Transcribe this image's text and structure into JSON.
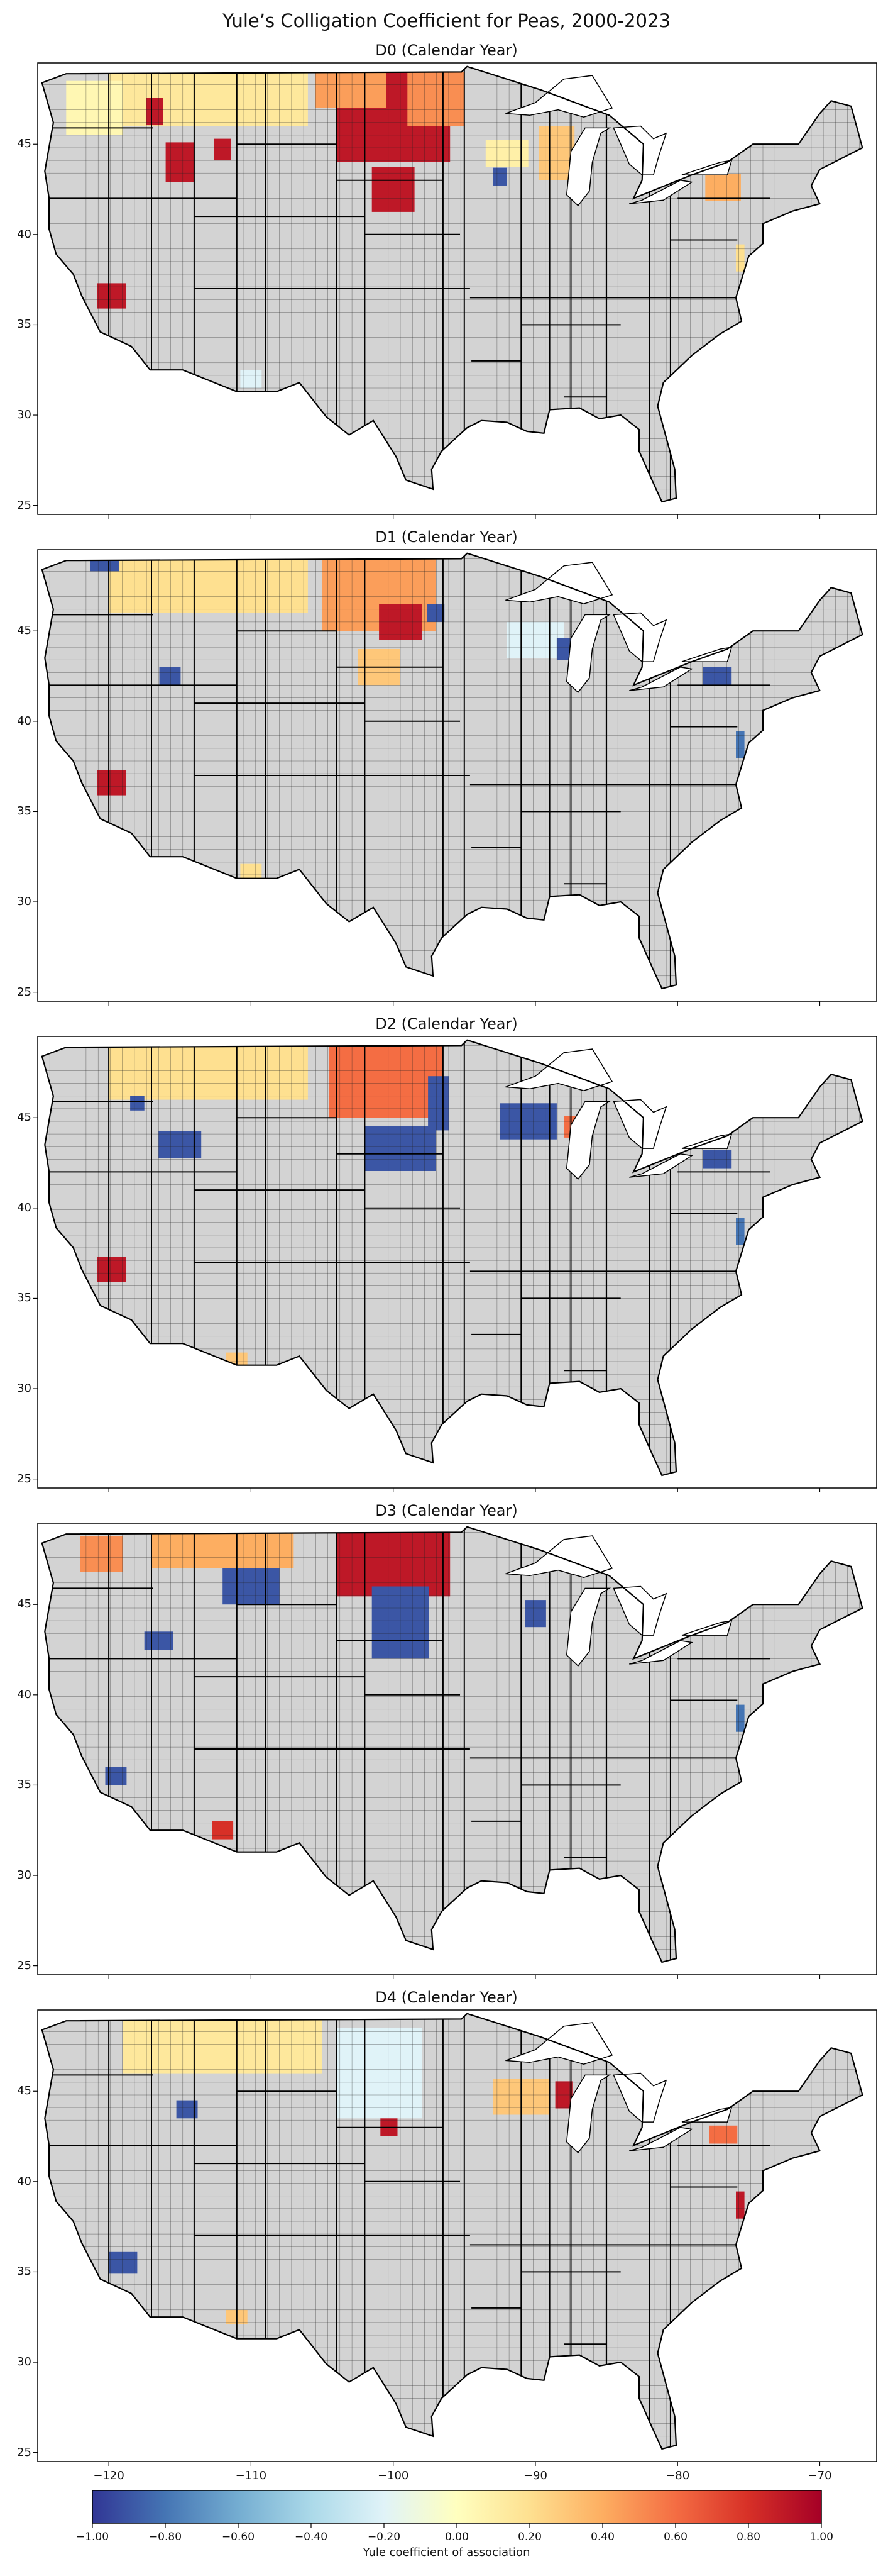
{
  "figure": {
    "title": "Yule’s Colligation Coefficient for Peas, 2000-2023"
  },
  "map_data": {
    "type": "choropleth",
    "region": "Contiguous United States (county level)",
    "lon_range": [
      -125,
      -66
    ],
    "lat_range": [
      24.5,
      49.5
    ],
    "x_ticks": [
      "−120",
      "−110",
      "−100",
      "−90",
      "−80",
      "−70"
    ],
    "y_ticks": [
      "25",
      "30",
      "35",
      "40",
      "45"
    ],
    "no_data_color": "#d3d3d3",
    "colormap": "RdYlBu_r",
    "panels": [
      {
        "title": "D0 (Calendar Year)",
        "highlights": [
          {
            "lon": -100,
            "lat": 46.5,
            "v": 0.9,
            "w": 8,
            "h": 5
          },
          {
            "lon": -97,
            "lat": 47.5,
            "v": 0.5,
            "w": 4,
            "h": 3
          },
          {
            "lon": -103,
            "lat": 48,
            "v": 0.45,
            "w": 5,
            "h": 2
          },
          {
            "lon": -113,
            "lat": 47.5,
            "v": 0.15,
            "w": 14,
            "h": 3
          },
          {
            "lon": -121,
            "lat": 47,
            "v": 0.05,
            "w": 4,
            "h": 3
          },
          {
            "lon": -116.8,
            "lat": 46.8,
            "v": 0.9,
            "w": 1.2,
            "h": 1.5
          },
          {
            "lon": -115,
            "lat": 44,
            "v": 0.9,
            "w": 2,
            "h": 2.2
          },
          {
            "lon": -112,
            "lat": 44.7,
            "v": 0.9,
            "w": 1.2,
            "h": 1.2
          },
          {
            "lon": -119.8,
            "lat": 36.6,
            "v": 0.9,
            "w": 2,
            "h": 1.4
          },
          {
            "lon": -100,
            "lat": 42.5,
            "v": 0.9,
            "w": 3,
            "h": 2.5
          },
          {
            "lon": -92,
            "lat": 44.5,
            "v": 0.1,
            "w": 3,
            "h": 1.5
          },
          {
            "lon": -88.5,
            "lat": 44.5,
            "v": 0.3,
            "w": 2.5,
            "h": 3
          },
          {
            "lon": -92.5,
            "lat": 43.2,
            "v": -0.9,
            "w": 1,
            "h": 1
          },
          {
            "lon": -76.8,
            "lat": 42.6,
            "v": 0.4,
            "w": 2.5,
            "h": 1.5
          },
          {
            "lon": -75.6,
            "lat": 38.7,
            "v": 0.2,
            "w": 0.6,
            "h": 1.5
          },
          {
            "lon": -110,
            "lat": 32,
            "v": -0.2,
            "w": 1.5,
            "h": 1
          }
        ]
      },
      {
        "title": "D1 (Calendar Year)",
        "highlights": [
          {
            "lon": -101,
            "lat": 47,
            "v": 0.45,
            "w": 8,
            "h": 4
          },
          {
            "lon": -99.5,
            "lat": 45.5,
            "v": 0.9,
            "w": 3,
            "h": 2
          },
          {
            "lon": -113,
            "lat": 47.5,
            "v": 0.2,
            "w": 14,
            "h": 3
          },
          {
            "lon": -97,
            "lat": 46,
            "v": -0.9,
            "w": 1.2,
            "h": 1
          },
          {
            "lon": -120.3,
            "lat": 48.6,
            "v": -0.9,
            "w": 2,
            "h": 0.6
          },
          {
            "lon": -115.7,
            "lat": 42.5,
            "v": -0.9,
            "w": 1.5,
            "h": 1
          },
          {
            "lon": -119.8,
            "lat": 36.6,
            "v": 0.9,
            "w": 2,
            "h": 1.4
          },
          {
            "lon": -101,
            "lat": 43,
            "v": 0.3,
            "w": 3,
            "h": 2
          },
          {
            "lon": -90,
            "lat": 44.5,
            "v": -0.2,
            "w": 4,
            "h": 2
          },
          {
            "lon": -88,
            "lat": 44,
            "v": -0.9,
            "w": 1,
            "h": 1.2
          },
          {
            "lon": -77.2,
            "lat": 42.5,
            "v": -0.9,
            "w": 2,
            "h": 1
          },
          {
            "lon": -75.6,
            "lat": 38.7,
            "v": -0.8,
            "w": 0.6,
            "h": 1.5
          },
          {
            "lon": -110,
            "lat": 31.7,
            "v": 0.2,
            "w": 1.5,
            "h": 0.8
          }
        ]
      },
      {
        "title": "D2 (Calendar Year)",
        "highlights": [
          {
            "lon": -100.5,
            "lat": 47,
            "v": 0.6,
            "w": 8,
            "h": 4
          },
          {
            "lon": -113,
            "lat": 47.5,
            "v": 0.2,
            "w": 14,
            "h": 3
          },
          {
            "lon": -96.8,
            "lat": 45.8,
            "v": -0.9,
            "w": 1.5,
            "h": 3
          },
          {
            "lon": -99.5,
            "lat": 43.3,
            "v": -0.9,
            "w": 5,
            "h": 2.5
          },
          {
            "lon": -115,
            "lat": 43.5,
            "v": -0.9,
            "w": 3,
            "h": 1.5
          },
          {
            "lon": -118,
            "lat": 45.8,
            "v": -0.9,
            "w": 1,
            "h": 0.8
          },
          {
            "lon": -119.8,
            "lat": 36.6,
            "v": 0.9,
            "w": 2,
            "h": 1.4
          },
          {
            "lon": -90.5,
            "lat": 44.8,
            "v": -0.9,
            "w": 4,
            "h": 2
          },
          {
            "lon": -87.5,
            "lat": 44.5,
            "v": 0.6,
            "w": 1,
            "h": 1.2
          },
          {
            "lon": -77.2,
            "lat": 42.7,
            "v": -0.9,
            "w": 2,
            "h": 1
          },
          {
            "lon": -75.6,
            "lat": 38.7,
            "v": -0.8,
            "w": 0.6,
            "h": 1.5
          },
          {
            "lon": -111,
            "lat": 31.5,
            "v": 0.3,
            "w": 1.5,
            "h": 1
          }
        ]
      },
      {
        "title": "D3 (Calendar Year)",
        "highlights": [
          {
            "lon": -100,
            "lat": 47.2,
            "v": 0.9,
            "w": 8,
            "h": 3.5
          },
          {
            "lon": -99.5,
            "lat": 44,
            "v": -0.9,
            "w": 4,
            "h": 4
          },
          {
            "lon": -110,
            "lat": 46,
            "v": -0.9,
            "w": 4,
            "h": 2
          },
          {
            "lon": -112,
            "lat": 48,
            "v": 0.4,
            "w": 10,
            "h": 2
          },
          {
            "lon": -120.5,
            "lat": 47.8,
            "v": 0.5,
            "w": 3,
            "h": 2
          },
          {
            "lon": -116.5,
            "lat": 43,
            "v": -0.9,
            "w": 2,
            "h": 1
          },
          {
            "lon": -119.5,
            "lat": 35.5,
            "v": -0.9,
            "w": 1.5,
            "h": 1
          },
          {
            "lon": -90,
            "lat": 44.5,
            "v": -0.9,
            "w": 1.5,
            "h": 1.5
          },
          {
            "lon": -75.6,
            "lat": 38.7,
            "v": -0.8,
            "w": 0.6,
            "h": 1.5
          },
          {
            "lon": -112,
            "lat": 32.5,
            "v": 0.8,
            "w": 1.5,
            "h": 1
          }
        ]
      },
      {
        "title": "D4 (Calendar Year)",
        "highlights": [
          {
            "lon": -101,
            "lat": 46,
            "v": -0.2,
            "w": 6,
            "h": 5
          },
          {
            "lon": -112,
            "lat": 47.5,
            "v": 0.15,
            "w": 14,
            "h": 3
          },
          {
            "lon": -91,
            "lat": 44.7,
            "v": 0.3,
            "w": 4,
            "h": 2
          },
          {
            "lon": -88,
            "lat": 44.8,
            "v": 0.9,
            "w": 1.2,
            "h": 1.5
          },
          {
            "lon": -100.3,
            "lat": 43,
            "v": 0.9,
            "w": 1.2,
            "h": 1
          },
          {
            "lon": -114.5,
            "lat": 44,
            "v": -0.9,
            "w": 1.5,
            "h": 1
          },
          {
            "lon": -119,
            "lat": 35.5,
            "v": -0.9,
            "w": 2,
            "h": 1.2
          },
          {
            "lon": -76.8,
            "lat": 42.6,
            "v": 0.6,
            "w": 2,
            "h": 1
          },
          {
            "lon": -75.6,
            "lat": 38.7,
            "v": 0.9,
            "w": 0.6,
            "h": 1.5
          },
          {
            "lon": -111,
            "lat": 32.5,
            "v": 0.3,
            "w": 1.5,
            "h": 0.8
          }
        ]
      }
    ]
  },
  "colorbar": {
    "ticks": [
      "−1.00",
      "−0.80",
      "−0.60",
      "−0.40",
      "−0.20",
      "0.00",
      "0.20",
      "0.40",
      "0.60",
      "0.80",
      "1.00"
    ],
    "label": "Yule coefficient of association",
    "min": -1,
    "max": 1,
    "stops": [
      "#313695",
      "#4575b4",
      "#74add1",
      "#abd9e9",
      "#e0f3f8",
      "#ffffbf",
      "#fee090",
      "#fdae61",
      "#f46d43",
      "#d73027",
      "#a50026"
    ]
  }
}
